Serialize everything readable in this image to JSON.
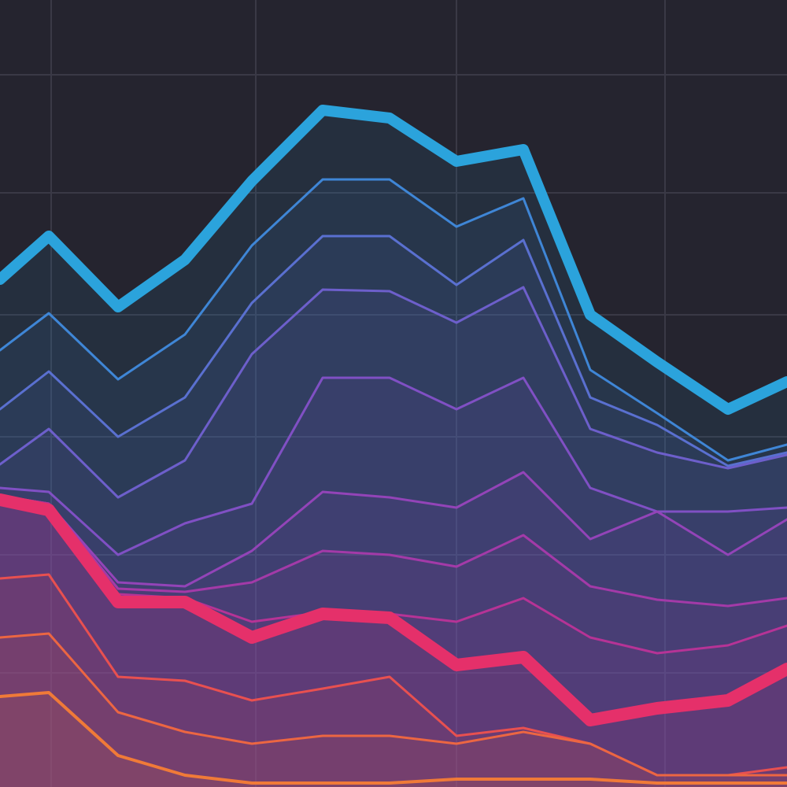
{
  "chart_data": {
    "type": "line",
    "x": [
      0,
      62,
      150,
      235,
      320,
      410,
      495,
      580,
      665,
      750,
      835,
      925,
      1000
    ],
    "xlim": [
      0,
      1000
    ],
    "ylim": [
      1000,
      0
    ],
    "xticks": [
      65,
      325,
      580,
      845
    ],
    "yticks": [
      95,
      245,
      400,
      555,
      705,
      855
    ],
    "grid": true,
    "background": "#25242f",
    "series": [
      {
        "color": "#2ba3dc",
        "width": 14,
        "values": [
          355,
          300,
          390,
          330,
          230,
          140,
          150,
          205,
          190,
          400,
          460,
          520,
          485
        ]
      },
      {
        "color": "#3f86d6",
        "width": 3,
        "values": [
          445,
          398,
          482,
          425,
          312,
          228,
          228,
          288,
          252,
          470,
          525,
          585,
          565
        ]
      },
      {
        "color": "#5a70d0",
        "width": 3,
        "values": [
          520,
          472,
          555,
          505,
          385,
          300,
          300,
          362,
          305,
          505,
          540,
          592,
          575
        ]
      },
      {
        "color": "#6d5fcb",
        "width": 3,
        "values": [
          590,
          545,
          632,
          585,
          450,
          368,
          370,
          410,
          365,
          545,
          575,
          595,
          578
        ]
      },
      {
        "color": "#8050c4",
        "width": 3,
        "values": [
          620,
          625,
          705,
          665,
          640,
          480,
          480,
          520,
          480,
          620,
          650,
          650,
          645
        ]
      },
      {
        "color": "#9344b8",
        "width": 3,
        "values": [
          630,
          640,
          740,
          745,
          700,
          625,
          632,
          645,
          600,
          685,
          650,
          705,
          660
        ]
      },
      {
        "color": "#a33aa8",
        "width": 3,
        "values": [
          630,
          640,
          748,
          752,
          740,
          700,
          705,
          720,
          680,
          745,
          762,
          770,
          760
        ]
      },
      {
        "color": "#b63396",
        "width": 3,
        "values": [
          630,
          640,
          755,
          760,
          790,
          778,
          780,
          790,
          760,
          810,
          830,
          820,
          795
        ]
      },
      {
        "color": "#e5306a",
        "width": 16,
        "values": [
          635,
          648,
          765,
          765,
          810,
          780,
          785,
          845,
          835,
          915,
          900,
          890,
          850
        ]
      },
      {
        "color": "#e85050",
        "width": 3,
        "values": [
          735,
          730,
          860,
          865,
          890,
          875,
          860,
          935,
          925,
          945,
          985,
          985,
          975
        ]
      },
      {
        "color": "#ec6642",
        "width": 3,
        "values": [
          810,
          805,
          905,
          930,
          945,
          935,
          935,
          945,
          930,
          945,
          985,
          985,
          985
        ]
      },
      {
        "color": "#f07a38",
        "width": 4,
        "values": [
          885,
          880,
          960,
          985,
          995,
          995,
          995,
          990,
          990,
          990,
          995,
          995,
          995
        ]
      }
    ]
  }
}
